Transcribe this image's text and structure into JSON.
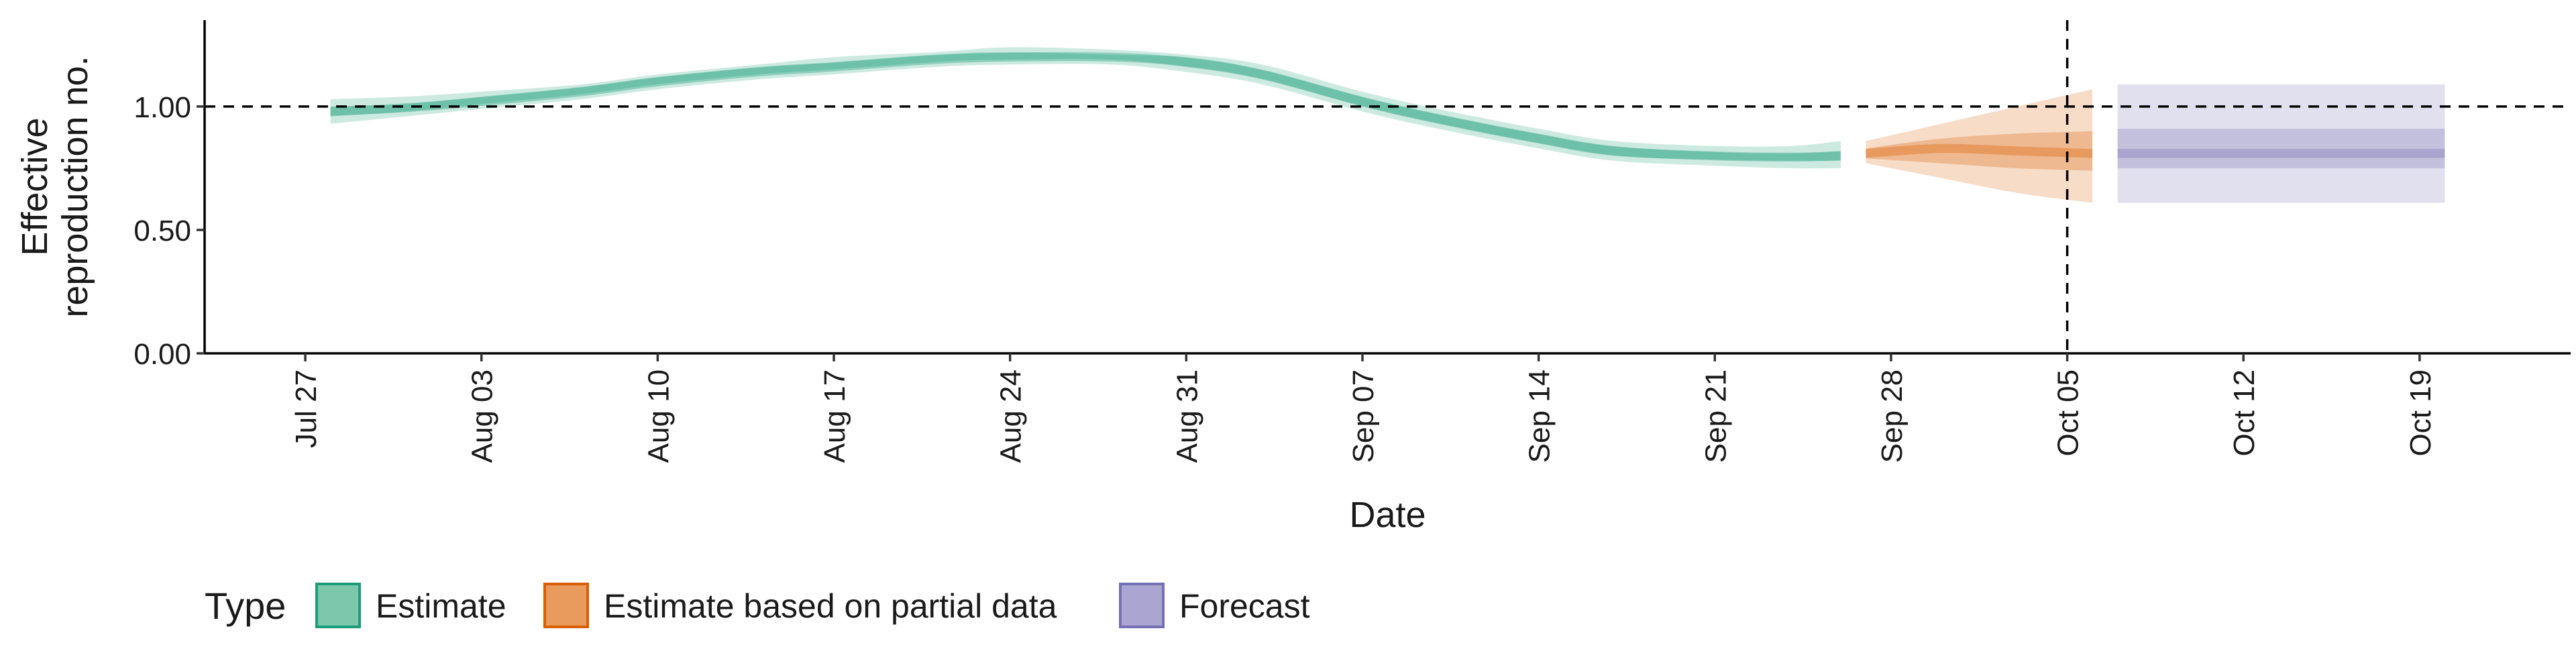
{
  "chart_data": {
    "type": "area",
    "xlabel": "Date",
    "ylabel_lines": [
      "Effective",
      "reproduction no."
    ],
    "ylim": [
      0,
      1.35
    ],
    "yticks": [
      0.0,
      0.5,
      1.0
    ],
    "ytick_labels": [
      "0.00",
      "0.50",
      "1.00"
    ],
    "xlim": [
      "2020-07-23",
      "2020-10-25"
    ],
    "xticks": [
      "2020-07-27",
      "2020-08-03",
      "2020-08-10",
      "2020-08-17",
      "2020-08-24",
      "2020-08-31",
      "2020-09-07",
      "2020-09-14",
      "2020-09-21",
      "2020-09-28",
      "2020-10-05",
      "2020-10-12",
      "2020-10-19"
    ],
    "xtick_labels": [
      "Jul 27",
      "Aug 03",
      "Aug 10",
      "Aug 17",
      "Aug 24",
      "Aug 31",
      "Sep 07",
      "Sep 14",
      "Sep 21",
      "Sep 28",
      "Oct 05",
      "Oct 12",
      "Oct 19"
    ],
    "reference_hline": 1.0,
    "reference_vline": "2020-10-05",
    "legend": {
      "title": "Type",
      "position": "bottom-left",
      "entries": [
        "Estimate",
        "Estimate based on partial data",
        "Forecast"
      ]
    },
    "colors": {
      "Estimate": "#1b9e77",
      "Estimate based on partial data": "#d95f02",
      "Forecast": "#7570b3",
      "legend_fill_Estimate": "#7dc8ad",
      "legend_fill_Estimate based on partial data": "#e99b5e",
      "legend_fill_Forecast": "#aaa6d1"
    },
    "series": [
      {
        "name": "Estimate",
        "x": [
          "2020-07-28",
          "2020-07-31",
          "2020-08-03",
          "2020-08-07",
          "2020-08-10",
          "2020-08-14",
          "2020-08-17",
          "2020-08-21",
          "2020-08-24",
          "2020-08-28",
          "2020-08-31",
          "2020-09-03",
          "2020-09-07",
          "2020-09-10",
          "2020-09-14",
          "2020-09-17",
          "2020-09-21",
          "2020-09-24",
          "2020-09-26"
        ],
        "median": [
          0.98,
          0.995,
          1.02,
          1.06,
          1.1,
          1.14,
          1.16,
          1.19,
          1.2,
          1.2,
          1.18,
          1.13,
          1.02,
          0.95,
          0.87,
          0.82,
          0.8,
          0.795,
          0.8
        ],
        "lower_90": [
          0.93,
          0.96,
          0.99,
          1.03,
          1.07,
          1.11,
          1.13,
          1.16,
          1.17,
          1.17,
          1.14,
          1.09,
          0.98,
          0.91,
          0.83,
          0.78,
          0.76,
          0.75,
          0.75
        ],
        "upper_90": [
          1.03,
          1.04,
          1.06,
          1.09,
          1.13,
          1.17,
          1.2,
          1.22,
          1.24,
          1.23,
          1.21,
          1.17,
          1.06,
          0.99,
          0.91,
          0.86,
          0.84,
          0.84,
          0.86
        ],
        "lower_50": [
          0.96,
          0.98,
          1.01,
          1.05,
          1.09,
          1.13,
          1.15,
          1.18,
          1.19,
          1.19,
          1.16,
          1.11,
          1.0,
          0.93,
          0.85,
          0.8,
          0.785,
          0.78,
          0.78
        ],
        "upper_50": [
          1.0,
          1.01,
          1.04,
          1.08,
          1.12,
          1.16,
          1.18,
          1.21,
          1.22,
          1.21,
          1.2,
          1.15,
          1.04,
          0.97,
          0.89,
          0.84,
          0.815,
          0.81,
          0.82
        ]
      },
      {
        "name": "Estimate based on partial data",
        "x": [
          "2020-09-27",
          "2020-09-30",
          "2020-10-03",
          "2020-10-06"
        ],
        "median": [
          0.81,
          0.83,
          0.82,
          0.81
        ],
        "lower_90": [
          0.77,
          0.71,
          0.65,
          0.61
        ],
        "upper_90": [
          0.86,
          0.93,
          1.0,
          1.07
        ],
        "lower_50": [
          0.79,
          0.77,
          0.75,
          0.74
        ],
        "upper_50": [
          0.83,
          0.87,
          0.89,
          0.9
        ]
      },
      {
        "name": "Forecast",
        "x": [
          "2020-10-07",
          "2020-10-20"
        ],
        "median": [
          0.81,
          0.81
        ],
        "lower_90": [
          0.61,
          0.61
        ],
        "upper_90": [
          1.09,
          1.09
        ],
        "lower_50": [
          0.75,
          0.75
        ],
        "upper_50": [
          0.91,
          0.91
        ]
      }
    ]
  }
}
